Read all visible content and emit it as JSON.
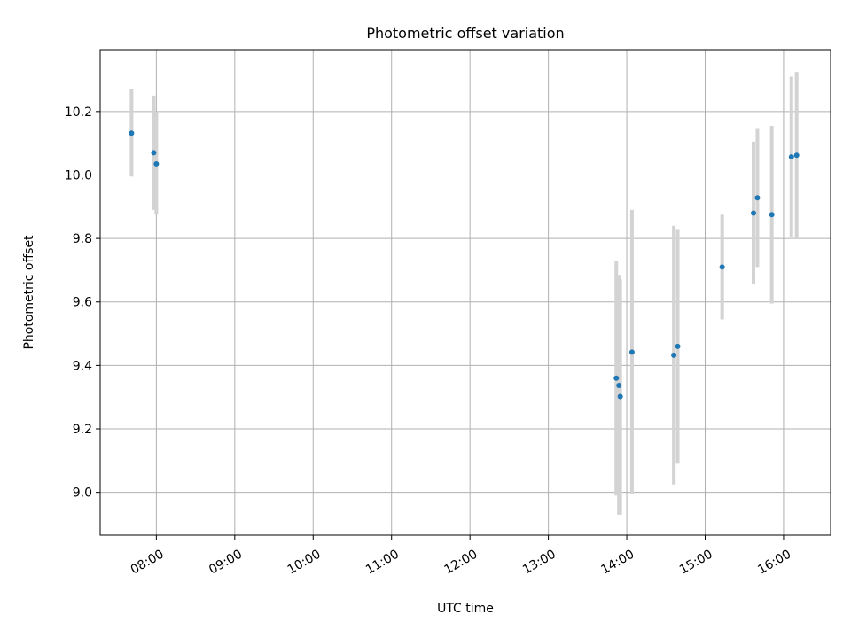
{
  "chart_data": {
    "type": "scatter",
    "title": "Photometric offset variation",
    "xlabel": "UTC time",
    "ylabel": "Photometric offset",
    "x_ticks": [
      "08:00",
      "09:00",
      "10:00",
      "11:00",
      "12:00",
      "13:00",
      "14:00",
      "15:00",
      "16:00"
    ],
    "y_ticks": [
      "9.0",
      "9.2",
      "9.4",
      "9.6",
      "9.8",
      "10.0",
      "10.2"
    ],
    "xlim": [
      "07:17",
      "16:36"
    ],
    "ylim": [
      8.865,
      10.395
    ],
    "grid": true,
    "colors": {
      "point": "#1f77b4",
      "errorbar": "#d3d3d3",
      "grid": "#b0b0b0"
    },
    "series": [
      {
        "points": [
          {
            "x": "07:41",
            "y": 10.132,
            "ylow": 9.995,
            "yhigh": 10.27
          },
          {
            "x": "07:58",
            "y": 10.07,
            "ylow": 9.89,
            "yhigh": 10.25
          },
          {
            "x": "08:00",
            "y": 10.035,
            "ylow": 9.875,
            "yhigh": 10.2
          },
          {
            "x": "13:52",
            "y": 9.36,
            "ylow": 8.99,
            "yhigh": 9.73
          },
          {
            "x": "13:54",
            "y": 9.337,
            "ylow": 8.93,
            "yhigh": 9.685
          },
          {
            "x": "13:55",
            "y": 9.302,
            "ylow": 8.93,
            "yhigh": 9.67
          },
          {
            "x": "14:04",
            "y": 9.442,
            "ylow": 8.995,
            "yhigh": 9.89
          },
          {
            "x": "14:36",
            "y": 9.432,
            "ylow": 9.025,
            "yhigh": 9.84
          },
          {
            "x": "14:39",
            "y": 9.46,
            "ylow": 9.09,
            "yhigh": 9.83
          },
          {
            "x": "15:13",
            "y": 9.71,
            "ylow": 9.545,
            "yhigh": 9.875
          },
          {
            "x": "15:37",
            "y": 9.88,
            "ylow": 9.655,
            "yhigh": 10.105
          },
          {
            "x": "15:40",
            "y": 9.928,
            "ylow": 9.71,
            "yhigh": 10.145
          },
          {
            "x": "15:51",
            "y": 9.875,
            "ylow": 9.595,
            "yhigh": 10.155
          },
          {
            "x": "16:06",
            "y": 10.057,
            "ylow": 9.805,
            "yhigh": 10.31
          },
          {
            "x": "16:10",
            "y": 10.062,
            "ylow": 9.8,
            "yhigh": 10.325
          }
        ]
      }
    ]
  }
}
